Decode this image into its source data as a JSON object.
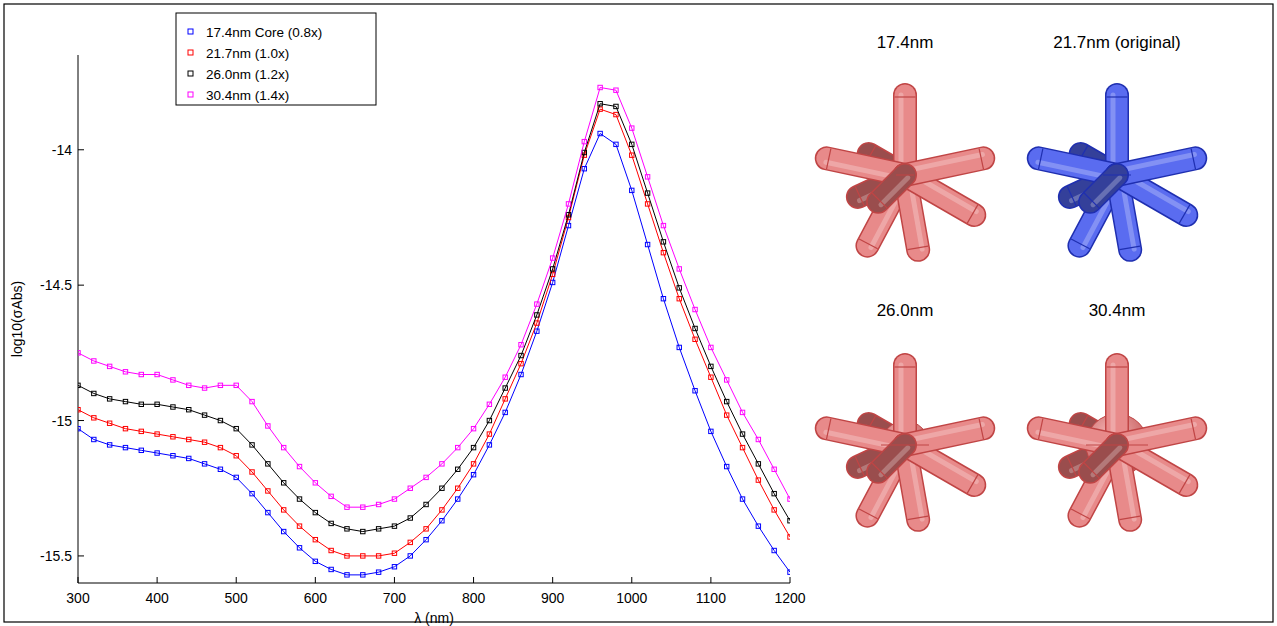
{
  "chart_data": {
    "type": "line",
    "x_label": "λ (nm)",
    "y_label": "log10(σAbs)",
    "x": [
      300,
      320,
      340,
      360,
      380,
      400,
      420,
      440,
      460,
      480,
      500,
      520,
      540,
      560,
      580,
      600,
      620,
      640,
      660,
      680,
      700,
      720,
      740,
      760,
      780,
      800,
      820,
      840,
      860,
      880,
      900,
      920,
      940,
      960,
      980,
      1000,
      1020,
      1040,
      1060,
      1080,
      1100,
      1120,
      1140,
      1160,
      1180,
      1200
    ],
    "series": [
      {
        "name": "17.4nm Core (0.8x)",
        "color": "#0000ff",
        "marker": "square",
        "line_style": "solid",
        "values": [
          -15.03,
          -15.07,
          -15.09,
          -15.1,
          -15.11,
          -15.12,
          -15.13,
          -15.14,
          -15.16,
          -15.18,
          -15.21,
          -15.27,
          -15.34,
          -15.41,
          -15.47,
          -15.52,
          -15.55,
          -15.57,
          -15.57,
          -15.56,
          -15.54,
          -15.5,
          -15.44,
          -15.37,
          -15.29,
          -15.2,
          -15.09,
          -14.97,
          -14.83,
          -14.67,
          -14.49,
          -14.28,
          -14.07,
          -13.94,
          -13.98,
          -14.15,
          -14.35,
          -14.55,
          -14.73,
          -14.89,
          -15.04,
          -15.17,
          -15.29,
          -15.39,
          -15.48,
          -15.56
        ]
      },
      {
        "name": "21.7nm (1.0x)",
        "color": "#ff0000",
        "marker": "square",
        "line_style": "solid",
        "values": [
          -14.96,
          -14.99,
          -15.01,
          -15.03,
          -15.04,
          -15.05,
          -15.06,
          -15.07,
          -15.08,
          -15.1,
          -15.13,
          -15.19,
          -15.26,
          -15.33,
          -15.39,
          -15.44,
          -15.48,
          -15.5,
          -15.5,
          -15.5,
          -15.49,
          -15.45,
          -15.4,
          -15.33,
          -15.25,
          -15.16,
          -15.05,
          -14.92,
          -14.79,
          -14.64,
          -14.46,
          -14.25,
          -14.02,
          -13.85,
          -13.87,
          -14.02,
          -14.2,
          -14.38,
          -14.55,
          -14.7,
          -14.84,
          -14.98,
          -15.1,
          -15.22,
          -15.33,
          -15.43
        ]
      },
      {
        "name": "26.0nm (1.2x)",
        "color": "#000000",
        "marker": "square",
        "line_style": "solid",
        "values": [
          -14.87,
          -14.9,
          -14.92,
          -14.93,
          -14.94,
          -14.94,
          -14.95,
          -14.96,
          -14.98,
          -15.0,
          -15.03,
          -15.09,
          -15.16,
          -15.23,
          -15.29,
          -15.34,
          -15.38,
          -15.4,
          -15.41,
          -15.4,
          -15.39,
          -15.36,
          -15.31,
          -15.25,
          -15.18,
          -15.1,
          -15.0,
          -14.88,
          -14.76,
          -14.61,
          -14.44,
          -14.24,
          -14.01,
          -13.83,
          -13.84,
          -13.98,
          -14.16,
          -14.34,
          -14.51,
          -14.66,
          -14.8,
          -14.93,
          -15.05,
          -15.16,
          -15.27,
          -15.37
        ]
      },
      {
        "name": "30.4nm (1.4x)",
        "color": "#ff00ff",
        "marker": "square",
        "line_style": "solid",
        "values": [
          -14.75,
          -14.78,
          -14.8,
          -14.82,
          -14.83,
          -14.83,
          -14.85,
          -14.87,
          -14.88,
          -14.87,
          -14.87,
          -14.93,
          -15.02,
          -15.1,
          -15.17,
          -15.23,
          -15.28,
          -15.32,
          -15.32,
          -15.31,
          -15.29,
          -15.25,
          -15.21,
          -15.16,
          -15.1,
          -15.03,
          -14.94,
          -14.84,
          -14.72,
          -14.57,
          -14.4,
          -14.2,
          -13.97,
          -13.77,
          -13.78,
          -13.92,
          -14.1,
          -14.28,
          -14.44,
          -14.59,
          -14.73,
          -14.85,
          -14.97,
          -15.07,
          -15.18,
          -15.29
        ]
      }
    ],
    "xlim": [
      300,
      1200
    ],
    "xticks": [
      300,
      400,
      500,
      600,
      700,
      800,
      900,
      1000,
      1100,
      1200
    ],
    "ylim": [
      -15.6,
      -13.65
    ],
    "yticks": [
      -15.5,
      -15,
      -14.5,
      -14
    ],
    "grid": false,
    "legend": "upper left",
    "annotations": [
      "17.4nm",
      "21.7nm (original)",
      "26.0nm",
      "30.4nm"
    ]
  }
}
